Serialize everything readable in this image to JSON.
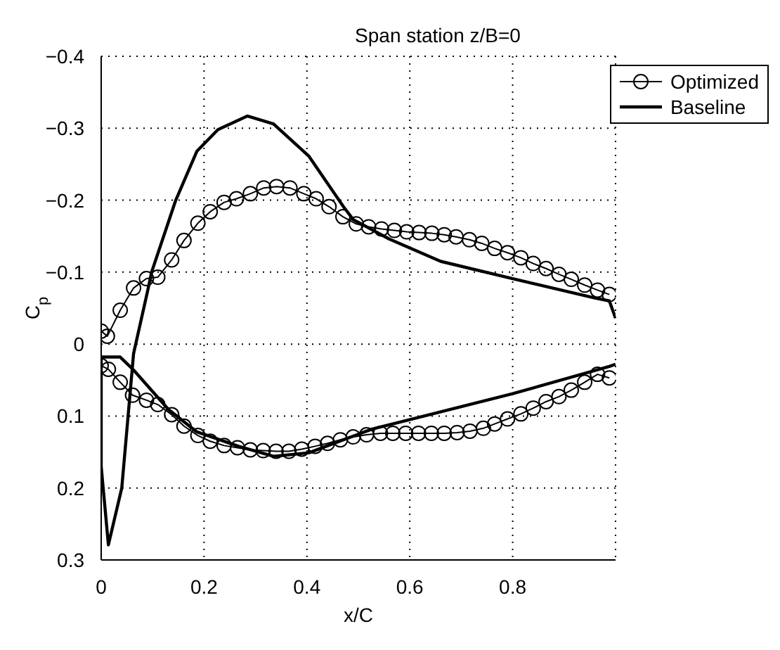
{
  "chart_data": {
    "type": "line",
    "title": "Span station z/B=0",
    "xlabel": "x/C",
    "ylabel": "C$_{p}$",
    "xlim": [
      0,
      1
    ],
    "xticks": [
      0,
      0.2,
      0.4,
      0.6,
      0.8
    ],
    "ylim": [
      0.3,
      -0.4
    ],
    "yticks": [
      {
        "value": -0.4,
        "label": "−0.4"
      },
      {
        "value": -0.3,
        "label": "−0.3"
      },
      {
        "value": -0.2,
        "label": "−0.2"
      },
      {
        "value": -0.1,
        "label": "−0.1"
      },
      0,
      0.1,
      0.2,
      0.3
    ],
    "grid": true,
    "legend": "top right",
    "line_style": "solid",
    "series": [
      {
        "name": "Optimized",
        "color": "#000000",
        "marker": "circle",
        "x": [
          0.988,
          0.965,
          0.94,
          0.914,
          0.89,
          0.865,
          0.84,
          0.816,
          0.79,
          0.765,
          0.74,
          0.716,
          0.69,
          0.667,
          0.643,
          0.618,
          0.594,
          0.57,
          0.545,
          0.52,
          0.496,
          0.47,
          0.443,
          0.418,
          0.394,
          0.367,
          0.341,
          0.316,
          0.29,
          0.263,
          0.239,
          0.212,
          0.188,
          0.161,
          0.137,
          0.11,
          0.088,
          0.063,
          0.037,
          0.012,
          0,
          0,
          0.014,
          0.037,
          0.061,
          0.088,
          0.11,
          0.137,
          0.161,
          0.188,
          0.212,
          0.239,
          0.265,
          0.29,
          0.315,
          0.34,
          0.365,
          0.39,
          0.416,
          0.44,
          0.465,
          0.49,
          0.516,
          0.543,
          0.567,
          0.592,
          0.617,
          0.642,
          0.667,
          0.692,
          0.717,
          0.743,
          0.765,
          0.79,
          0.816,
          0.84,
          0.865,
          0.89,
          0.914,
          0.94,
          0.965,
          0.988
        ],
        "values": [
          -0.069,
          -0.075,
          -0.082,
          -0.09,
          -0.097,
          -0.105,
          -0.112,
          -0.12,
          -0.127,
          -0.133,
          -0.14,
          -0.145,
          -0.149,
          -0.152,
          -0.154,
          -0.155,
          -0.156,
          -0.158,
          -0.16,
          -0.163,
          -0.167,
          -0.177,
          -0.191,
          -0.202,
          -0.209,
          -0.217,
          -0.219,
          -0.217,
          -0.209,
          -0.202,
          -0.197,
          -0.184,
          -0.168,
          -0.144,
          -0.117,
          -0.093,
          -0.091,
          -0.078,
          -0.047,
          -0.011,
          -0.018,
          0.03,
          0.035,
          0.053,
          0.071,
          0.078,
          0.084,
          0.098,
          0.114,
          0.127,
          0.135,
          0.141,
          0.144,
          0.147,
          0.148,
          0.149,
          0.149,
          0.146,
          0.142,
          0.138,
          0.133,
          0.129,
          0.126,
          0.124,
          0.124,
          0.124,
          0.124,
          0.124,
          0.124,
          0.123,
          0.121,
          0.117,
          0.111,
          0.104,
          0.097,
          0.089,
          0.08,
          0.073,
          0.064,
          0.053,
          0.042,
          0.047
        ]
      },
      {
        "name": "Baseline",
        "color": "#000000",
        "marker": "none",
        "x": [
          1,
          0.988,
          0.96,
          0.8,
          0.66,
          0.56,
          0.49,
          0.471,
          0.404,
          0.335,
          0.284,
          0.227,
          0.186,
          0.145,
          0.098,
          0.09,
          0.063,
          0.04,
          0.014,
          0,
          0,
          0.037,
          0.063,
          0.131,
          0.186,
          0.267,
          0.335,
          0.404,
          0.471,
          0.527,
          0.594,
          0.8,
          0.988,
          1
        ],
        "values": [
          -0.036,
          -0.06,
          -0.064,
          -0.091,
          -0.115,
          -0.146,
          -0.173,
          -0.191,
          -0.261,
          -0.306,
          -0.317,
          -0.298,
          -0.268,
          -0.2,
          -0.1,
          -0.073,
          0.013,
          0.2,
          0.279,
          0.17,
          0.018,
          0.018,
          0.036,
          0.091,
          0.122,
          0.142,
          0.156,
          0.151,
          0.133,
          0.118,
          0.106,
          0.069,
          0.031,
          0.028
        ]
      }
    ]
  }
}
